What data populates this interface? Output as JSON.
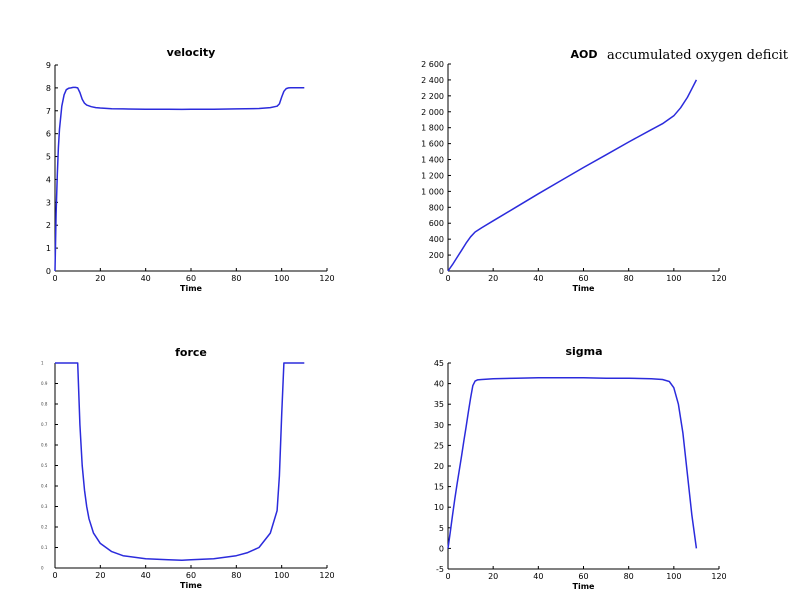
{
  "chart_data": [
    {
      "type": "line",
      "title": "velocity",
      "xlabel": "Time",
      "ylabel": "",
      "xlim": [
        0,
        120
      ],
      "ylim": [
        0,
        9
      ],
      "xticks": [
        0,
        20,
        40,
        60,
        80,
        100,
        120
      ],
      "yticks": [
        0,
        1,
        2,
        3,
        4,
        5,
        6,
        7,
        8,
        9
      ],
      "ytick_labels": [
        "0",
        "1",
        "2",
        "3",
        "4",
        "5",
        "6",
        "7",
        "8",
        "9"
      ],
      "series": [
        {
          "x": [
            0,
            0.5,
            1,
            1.5,
            2,
            3,
            4,
            5,
            6,
            7,
            8,
            9,
            10,
            11,
            12,
            13,
            14,
            16,
            18,
            20,
            25,
            30,
            40,
            50,
            56,
            60,
            70,
            80,
            90,
            95,
            98,
            99,
            100,
            101,
            102,
            103,
            104,
            106,
            108,
            110
          ],
          "y": [
            0,
            2.5,
            4.2,
            5.4,
            6.2,
            7.2,
            7.7,
            7.92,
            7.98,
            8.0,
            8.02,
            8.02,
            8.0,
            7.8,
            7.5,
            7.33,
            7.25,
            7.18,
            7.14,
            7.12,
            7.09,
            7.08,
            7.07,
            7.07,
            7.06,
            7.07,
            7.07,
            7.08,
            7.1,
            7.14,
            7.2,
            7.3,
            7.6,
            7.85,
            7.97,
            8.0,
            8.01,
            8.01,
            8.01,
            8.01
          ]
        }
      ]
    },
    {
      "type": "line",
      "title": "AOD",
      "annotation": "accumulated oxygen deficit",
      "xlabel": "Time",
      "ylabel": "",
      "xlim": [
        0,
        120
      ],
      "ylim": [
        0,
        2600
      ],
      "xticks": [
        0,
        20,
        40,
        60,
        80,
        100,
        120
      ],
      "yticks": [
        0,
        200,
        400,
        600,
        800,
        1000,
        1200,
        1400,
        1600,
        1800,
        2000,
        2200,
        2400,
        2600
      ],
      "ytick_labels": [
        "0",
        "200",
        "400",
        "600",
        "800",
        "1 000",
        "1 200",
        "1 400",
        "1 600",
        "1 800",
        "2 000",
        "2 200",
        "2 400",
        "2 600"
      ],
      "series": [
        {
          "x": [
            0,
            2,
            4,
            6,
            8,
            10,
            12,
            15,
            20,
            30,
            40,
            50,
            60,
            70,
            80,
            90,
            95,
            100,
            103,
            106,
            108,
            110
          ],
          "y": [
            0,
            80,
            170,
            260,
            350,
            430,
            490,
            545,
            630,
            800,
            970,
            1135,
            1300,
            1460,
            1620,
            1775,
            1850,
            1950,
            2050,
            2180,
            2290,
            2400
          ]
        }
      ]
    },
    {
      "type": "line",
      "title": "force",
      "xlabel": "Time",
      "ylabel": "",
      "xlim": [
        0,
        120
      ],
      "ylim": [
        0,
        1
      ],
      "xticks": [
        0,
        20,
        40,
        60,
        80,
        100,
        120
      ],
      "yticks": [
        0,
        0.1,
        0.2,
        0.3,
        0.4,
        0.5,
        0.6,
        0.7,
        0.8,
        0.9,
        1
      ],
      "ytick_labels": [
        "0",
        "0.1",
        "0.2",
        "0.3",
        "0.4",
        "0.5",
        "0.6",
        "0.7",
        "0.8",
        "0.9",
        "1"
      ],
      "series": [
        {
          "x": [
            0,
            5,
            10,
            11,
            12,
            13,
            14,
            15,
            17,
            20,
            25,
            30,
            40,
            50,
            56,
            60,
            70,
            80,
            85,
            90,
            95,
            98,
            99,
            100,
            101,
            102,
            106,
            110
          ],
          "y": [
            1,
            1,
            1,
            0.7,
            0.5,
            0.38,
            0.3,
            0.24,
            0.17,
            0.12,
            0.08,
            0.06,
            0.045,
            0.04,
            0.038,
            0.04,
            0.045,
            0.06,
            0.075,
            0.1,
            0.17,
            0.28,
            0.45,
            0.75,
            1,
            1,
            1,
            1
          ]
        }
      ]
    },
    {
      "type": "line",
      "title": "sigma",
      "xlabel": "Time",
      "ylabel": "",
      "xlim": [
        0,
        120
      ],
      "ylim": [
        -5,
        45
      ],
      "xticks": [
        0,
        20,
        40,
        60,
        80,
        100,
        120
      ],
      "yticks": [
        -5,
        0,
        5,
        10,
        15,
        20,
        25,
        30,
        35,
        40,
        45
      ],
      "ytick_labels": [
        "-5",
        "0",
        "5",
        "10",
        "15",
        "20",
        "25",
        "30",
        "35",
        "40",
        "45"
      ],
      "series": [
        {
          "x": [
            0,
            1,
            2,
            3,
            4,
            5,
            6,
            7,
            8,
            9,
            10,
            11,
            12,
            13,
            15,
            20,
            30,
            40,
            50,
            56,
            60,
            70,
            80,
            90,
            95,
            98,
            100,
            102,
            104,
            106,
            108,
            110
          ],
          "y": [
            0,
            4,
            8,
            12,
            15.5,
            19,
            22.5,
            26,
            29.5,
            33,
            36.5,
            39.5,
            40.6,
            40.9,
            41.0,
            41.2,
            41.3,
            41.4,
            41.4,
            41.4,
            41.4,
            41.3,
            41.3,
            41.2,
            41.0,
            40.5,
            39,
            35,
            28,
            18,
            8,
            0
          ]
        }
      ]
    }
  ]
}
